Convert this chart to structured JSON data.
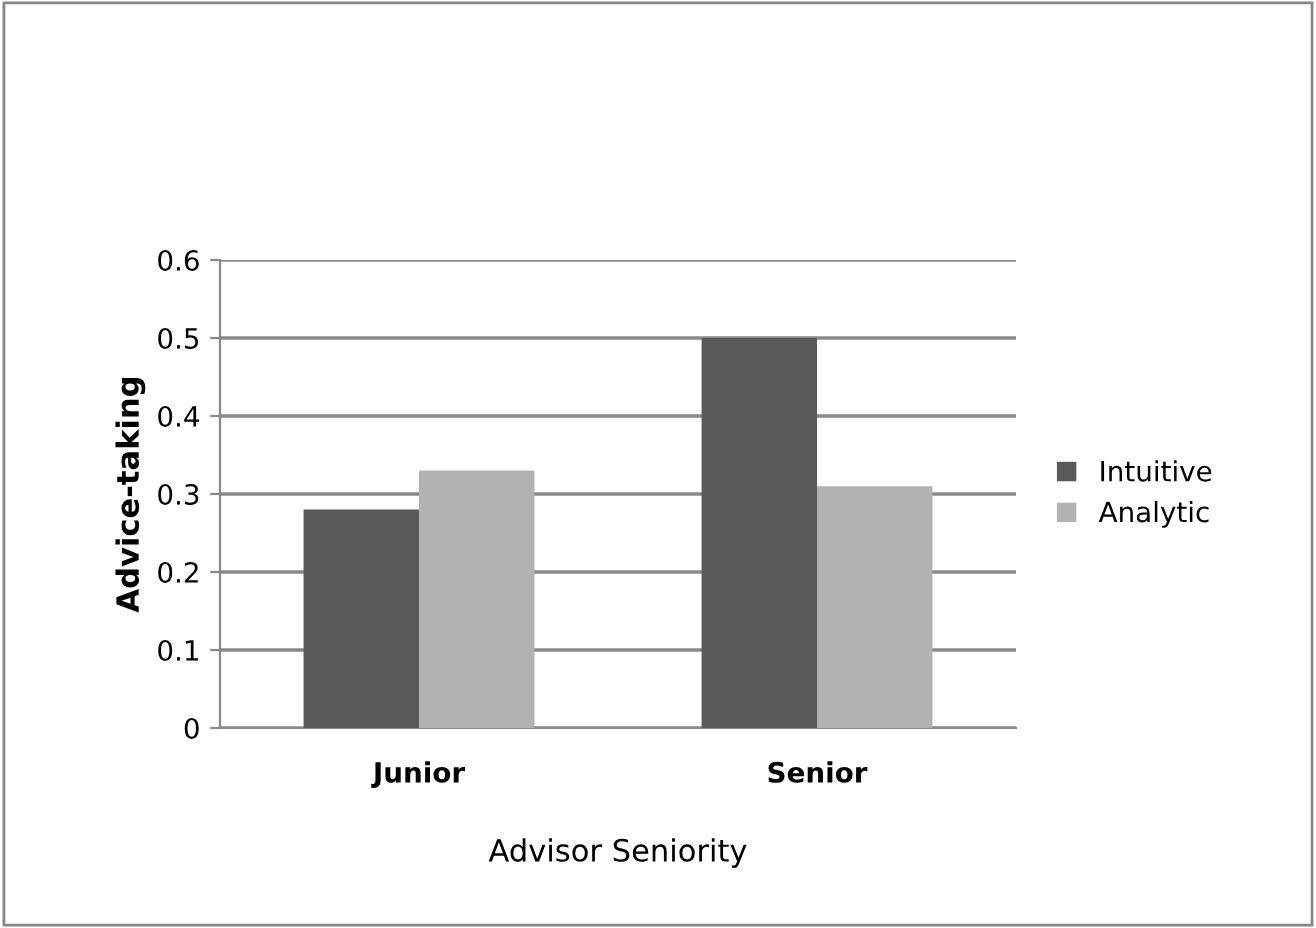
{
  "chart_data": {
    "type": "bar",
    "xlabel": "Advisor Seniority",
    "ylabel": "Advice-taking",
    "categories": [
      "Junior",
      "Senior"
    ],
    "series": [
      {
        "name": "Intuitive",
        "color": "#595959",
        "values": [
          0.28,
          0.5
        ]
      },
      {
        "name": "Analytic",
        "color": "#b2b2b2",
        "values": [
          0.33,
          0.31
        ]
      }
    ],
    "ylim": [
      0,
      0.6
    ],
    "yticks": [
      {
        "value": 0,
        "label": "0"
      },
      0.1,
      0.2,
      0.3,
      0.4,
      0.5,
      0.6
    ],
    "grid": "y",
    "legend": "right"
  }
}
